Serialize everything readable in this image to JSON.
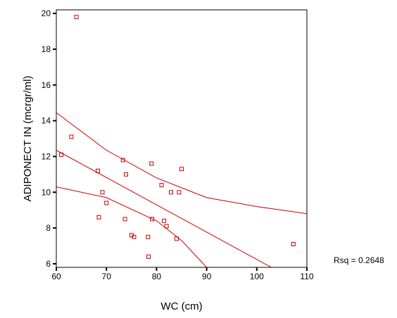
{
  "chart_data": {
    "type": "scatter",
    "title": "",
    "xlabel": "WC (cm)",
    "ylabel": "ADIPONECT IN (mcrgr/ml)",
    "xlim": [
      60,
      110
    ],
    "ylim": [
      5.8,
      20.2
    ],
    "xticks": [
      60,
      70,
      80,
      90,
      100,
      110
    ],
    "yticks": [
      6,
      8,
      10,
      12,
      14,
      16,
      18,
      20
    ],
    "grid": false,
    "annotation": "Rsq = 0.2648",
    "colors": {
      "marker": "#cc0000",
      "line": "#cc0000",
      "axis": "#000000"
    },
    "points": [
      {
        "x": 64.0,
        "y": 19.8
      },
      {
        "x": 63.0,
        "y": 13.1
      },
      {
        "x": 61.0,
        "y": 12.1
      },
      {
        "x": 68.3,
        "y": 11.2
      },
      {
        "x": 68.5,
        "y": 8.6
      },
      {
        "x": 69.2,
        "y": 10.0
      },
      {
        "x": 70.0,
        "y": 9.4
      },
      {
        "x": 73.3,
        "y": 11.8
      },
      {
        "x": 73.7,
        "y": 8.5
      },
      {
        "x": 73.9,
        "y": 11.0
      },
      {
        "x": 75.0,
        "y": 7.6
      },
      {
        "x": 75.5,
        "y": 7.5
      },
      {
        "x": 78.3,
        "y": 7.5
      },
      {
        "x": 78.4,
        "y": 6.4
      },
      {
        "x": 79.0,
        "y": 11.6
      },
      {
        "x": 79.1,
        "y": 8.5
      },
      {
        "x": 81.0,
        "y": 10.4
      },
      {
        "x": 81.5,
        "y": 8.4
      },
      {
        "x": 82.0,
        "y": 8.1
      },
      {
        "x": 82.9,
        "y": 10.0
      },
      {
        "x": 84.0,
        "y": 7.4
      },
      {
        "x": 84.5,
        "y": 10.0
      },
      {
        "x": 85.0,
        "y": 11.3
      },
      {
        "x": 107.3,
        "y": 7.1
      }
    ],
    "fit_line": [
      [
        60,
        12.35
      ],
      [
        102.9,
        5.8
      ]
    ],
    "ci_upper": [
      [
        60,
        14.45
      ],
      [
        70,
        12.35
      ],
      [
        80,
        10.8
      ],
      [
        90,
        9.7
      ],
      [
        100,
        9.2
      ],
      [
        110,
        8.8
      ]
    ],
    "ci_lower": [
      [
        60,
        10.3
      ],
      [
        70,
        9.7
      ],
      [
        80,
        8.4
      ],
      [
        85,
        7.3
      ],
      [
        90,
        5.8
      ]
    ]
  }
}
